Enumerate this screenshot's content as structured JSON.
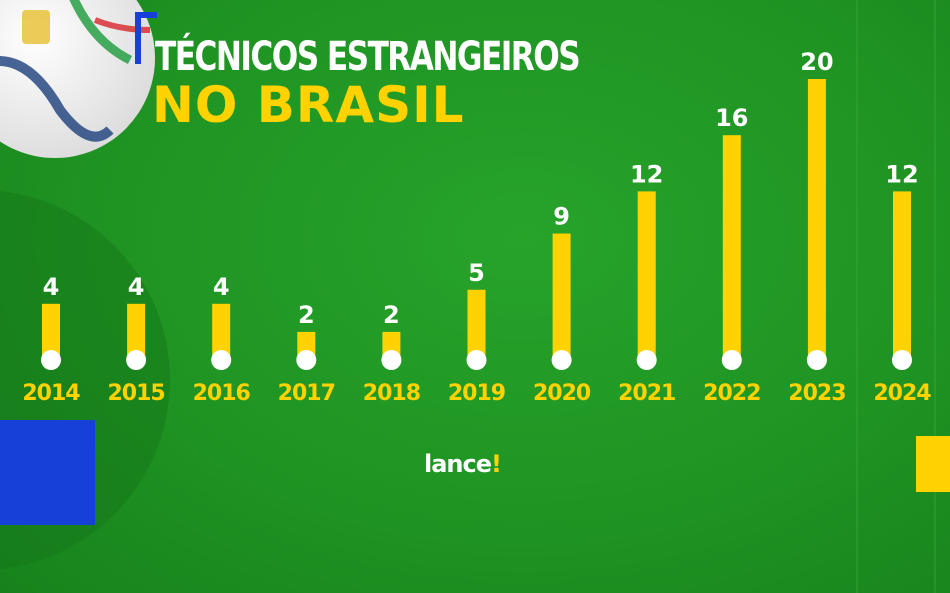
{
  "title": {
    "line1": "TÉCNICOS ESTRANGEIROS",
    "line2": "NO BRASIL"
  },
  "brand": {
    "name": "lance",
    "mark": "!"
  },
  "colors": {
    "background": "#1f9423",
    "bar": "#ffd200",
    "marker": "#ffffff",
    "accent_blue": "#1740d8"
  },
  "chart_data": {
    "type": "bar",
    "title": "TÉCNICOS ESTRANGEIROS NO BRASIL",
    "xlabel": "",
    "ylabel": "",
    "categories": [
      "2014",
      "2015",
      "2016",
      "2017",
      "2018",
      "2019",
      "2020",
      "2021",
      "2022",
      "2023",
      "2024"
    ],
    "values": [
      4,
      4,
      4,
      2,
      2,
      5,
      9,
      12,
      16,
      20,
      12
    ],
    "ylim": [
      0,
      20
    ],
    "grid": false,
    "legend": "none"
  }
}
